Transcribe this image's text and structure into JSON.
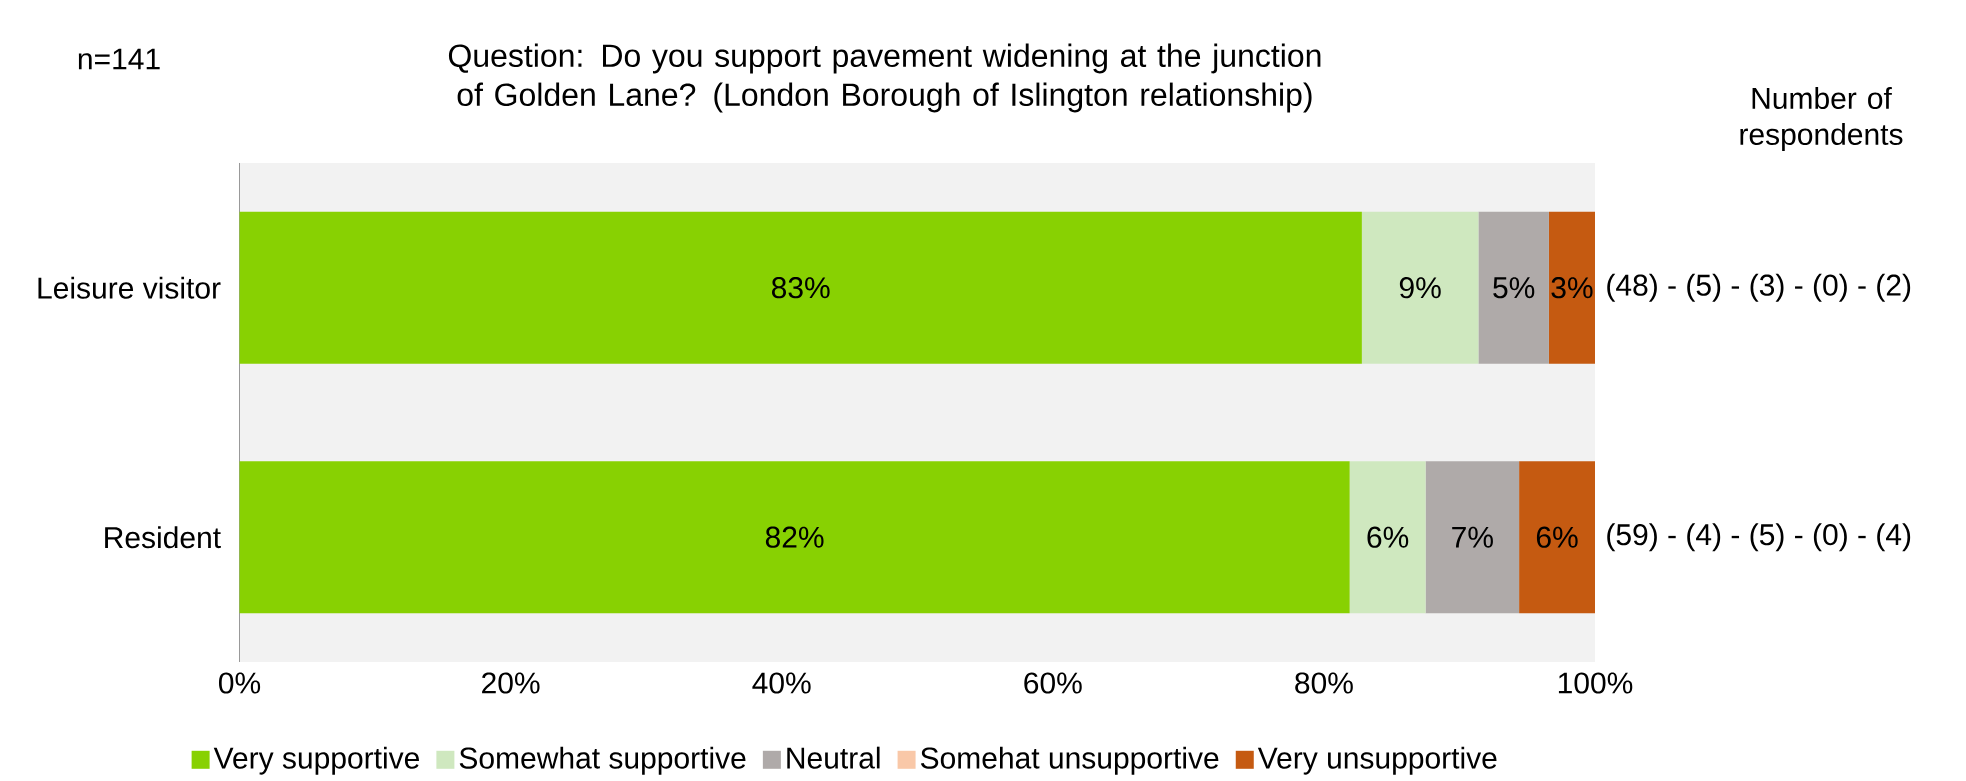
{
  "chart_data": {
    "type": "bar",
    "orientation": "horizontal",
    "stacked": true,
    "title": "Question: Do you support pavement widening at the junction of Golden Lane? (London Borough of Islington relationship)",
    "categories": [
      "Leisure visitor",
      "Resident"
    ],
    "series": [
      {
        "name": "Very supportive",
        "color": "#88d102",
        "values": [
          82.8,
          81.9
        ],
        "value_labels": [
          "83%",
          "82%"
        ]
      },
      {
        "name": "Somewhat supportive",
        "color": "#cfe8bf",
        "values": [
          8.6,
          5.6
        ],
        "value_labels": [
          "9%",
          "6%"
        ]
      },
      {
        "name": "Neutral",
        "color": "#afaaa9",
        "values": [
          5.2,
          6.9
        ],
        "value_labels": [
          "5%",
          "7%"
        ]
      },
      {
        "name": "Somehat unsupportive",
        "color": "#f9c8a8",
        "values": [
          0,
          0
        ],
        "value_labels": [
          null,
          null
        ]
      },
      {
        "name": "Very unsupportive",
        "color": "#c55a11",
        "values": [
          3.4,
          5.6
        ],
        "value_labels": [
          "3%",
          "6%"
        ]
      }
    ],
    "xlim": [
      0,
      100
    ],
    "xticks": [
      {
        "value": 0,
        "label": "0%"
      },
      {
        "value": 20,
        "label": "20%"
      },
      {
        "value": 40,
        "label": "40%"
      },
      {
        "value": 60,
        "label": "60%"
      },
      {
        "value": 80,
        "label": "80%"
      },
      {
        "value": 100,
        "label": "100%"
      }
    ],
    "legend": "bottom",
    "annotations": [
      "n=141",
      "Number of respondents",
      "(48) - (5) - (3) - (0) - (2)",
      "(59) - (4) - (5) - (0) - (4)"
    ]
  }
}
